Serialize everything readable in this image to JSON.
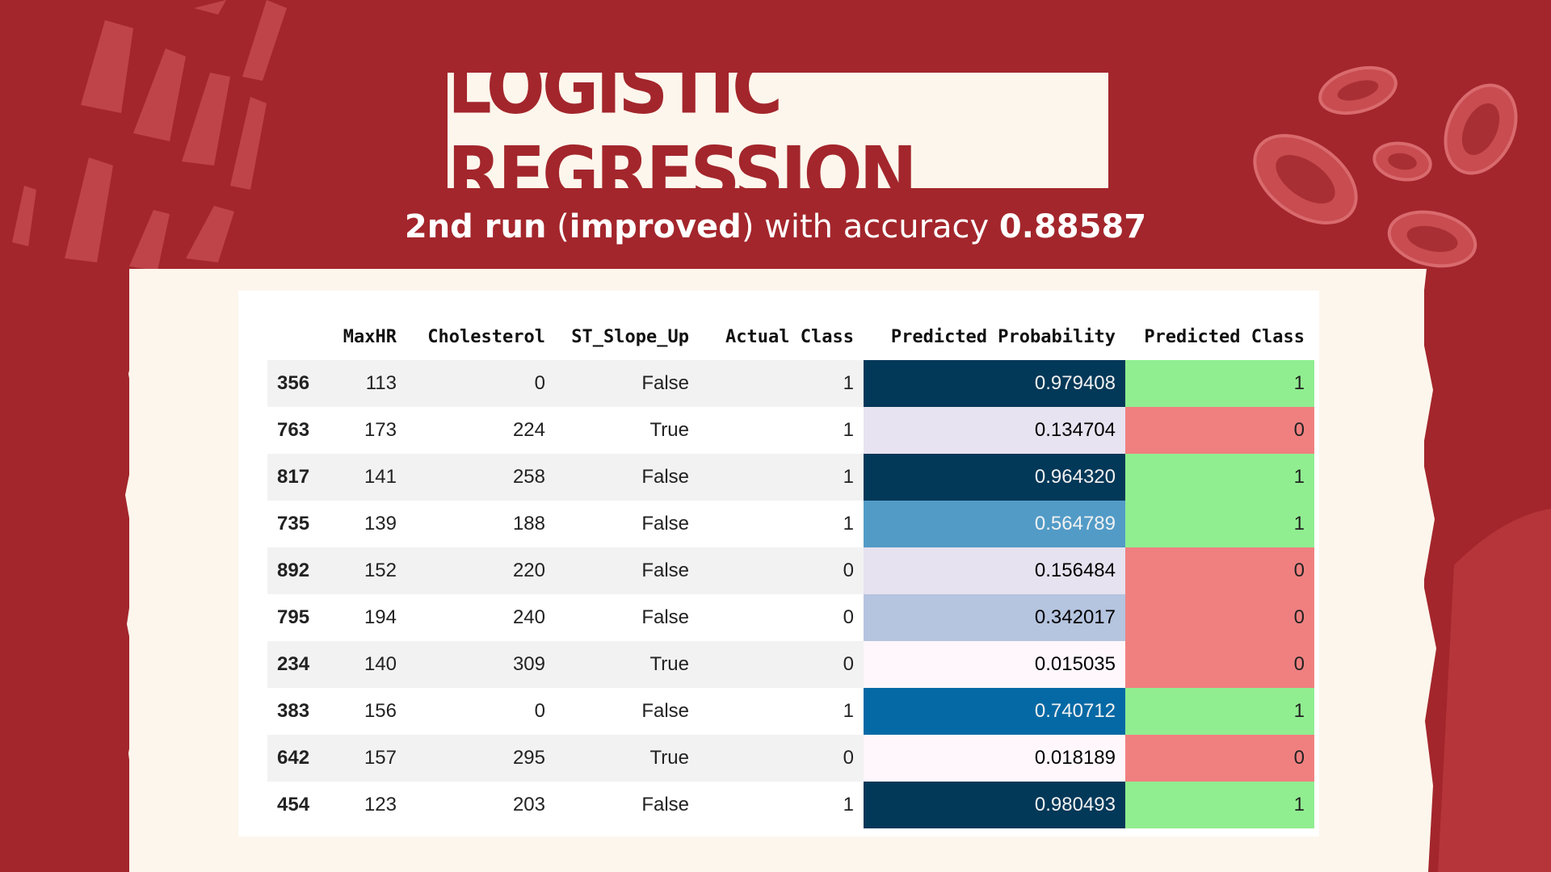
{
  "title": "LOGISTIC REGRESSION",
  "subtitle": {
    "run": "2nd run",
    "open_paren": " (",
    "improved": "improved",
    "close_text": ") with accuracy ",
    "accuracy": "0.88587"
  },
  "colors": {
    "background": "#a3262c",
    "paper": "#fdf6ec",
    "class_positive": "#90ee90",
    "class_negative": "#f08080"
  },
  "table": {
    "columns": [
      "",
      "MaxHR",
      "Cholesterol",
      "ST_Slope_Up",
      "Actual Class",
      "Predicted Probability",
      "Predicted Class"
    ],
    "rows": [
      {
        "index": "356",
        "maxhr": "113",
        "cholesterol": "0",
        "st_slope_up": "False",
        "actual": "1",
        "prob": "0.979408",
        "pred": "1",
        "prob_color": "#023858",
        "prob_text_color": "#f1f1f1",
        "pred_color": "#90ee90"
      },
      {
        "index": "763",
        "maxhr": "173",
        "cholesterol": "224",
        "st_slope_up": "True",
        "actual": "1",
        "prob": "0.134704",
        "pred": "0",
        "prob_color": "#e7e3f0",
        "prob_text_color": "#000000",
        "pred_color": "#f08080"
      },
      {
        "index": "817",
        "maxhr": "141",
        "cholesterol": "258",
        "st_slope_up": "False",
        "actual": "1",
        "prob": "0.964320",
        "pred": "1",
        "prob_color": "#023858",
        "prob_text_color": "#f1f1f1",
        "pred_color": "#90ee90"
      },
      {
        "index": "735",
        "maxhr": "139",
        "cholesterol": "188",
        "st_slope_up": "False",
        "actual": "1",
        "prob": "0.564789",
        "pred": "1",
        "prob_color": "#529bc7",
        "prob_text_color": "#f1f1f1",
        "pred_color": "#90ee90"
      },
      {
        "index": "892",
        "maxhr": "152",
        "cholesterol": "220",
        "st_slope_up": "False",
        "actual": "0",
        "prob": "0.156484",
        "pred": "0",
        "prob_color": "#e6e2ef",
        "prob_text_color": "#000000",
        "pred_color": "#f08080"
      },
      {
        "index": "795",
        "maxhr": "194",
        "cholesterol": "240",
        "st_slope_up": "False",
        "actual": "0",
        "prob": "0.342017",
        "pred": "0",
        "prob_color": "#b5c4df",
        "prob_text_color": "#000000",
        "pred_color": "#f08080"
      },
      {
        "index": "234",
        "maxhr": "140",
        "cholesterol": "309",
        "st_slope_up": "True",
        "actual": "0",
        "prob": "0.015035",
        "pred": "0",
        "prob_color": "#fff7fb",
        "prob_text_color": "#000000",
        "pred_color": "#f08080"
      },
      {
        "index": "383",
        "maxhr": "156",
        "cholesterol": "0",
        "st_slope_up": "False",
        "actual": "1",
        "prob": "0.740712",
        "pred": "1",
        "prob_color": "#0569a5",
        "prob_text_color": "#f1f1f1",
        "pred_color": "#90ee90"
      },
      {
        "index": "642",
        "maxhr": "157",
        "cholesterol": "295",
        "st_slope_up": "True",
        "actual": "0",
        "prob": "0.018189",
        "pred": "0",
        "prob_color": "#fff7fb",
        "prob_text_color": "#000000",
        "pred_color": "#f08080"
      },
      {
        "index": "454",
        "maxhr": "123",
        "cholesterol": "203",
        "st_slope_up": "False",
        "actual": "1",
        "prob": "0.980493",
        "pred": "1",
        "prob_color": "#023858",
        "prob_text_color": "#f1f1f1",
        "pred_color": "#90ee90"
      }
    ]
  }
}
